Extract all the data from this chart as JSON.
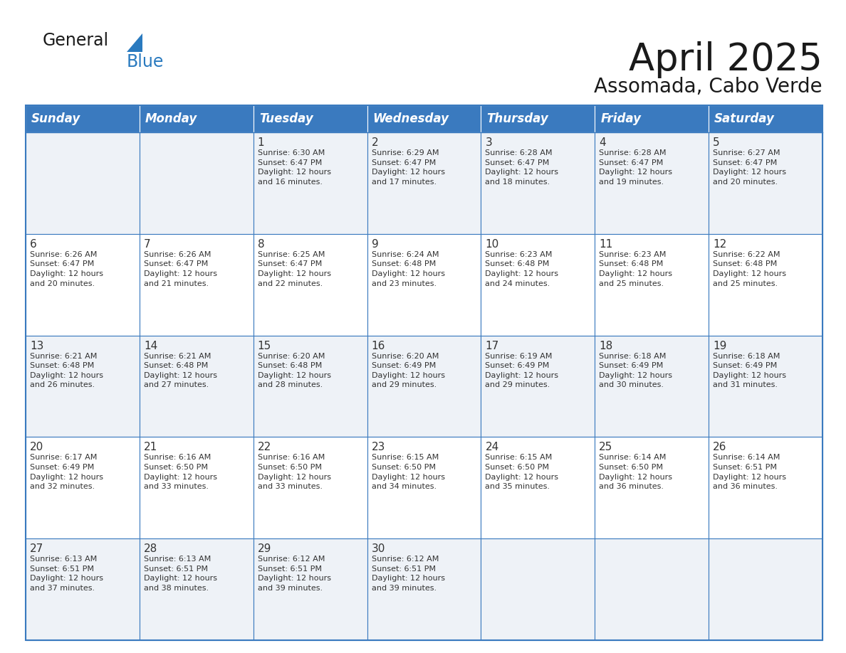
{
  "title": "April 2025",
  "subtitle": "Assomada, Cabo Verde",
  "header_color": "#3a7abf",
  "header_text_color": "#ffffff",
  "cell_bg_row0": "#eef2f7",
  "cell_bg_row1": "#ffffff",
  "cell_bg_row2": "#eef2f7",
  "cell_bg_row3": "#ffffff",
  "cell_bg_row4": "#eef2f7",
  "border_color": "#3a7abf",
  "text_color": "#333333",
  "days_of_week": [
    "Sunday",
    "Monday",
    "Tuesday",
    "Wednesday",
    "Thursday",
    "Friday",
    "Saturday"
  ],
  "calendar_data": [
    [
      {
        "day": "",
        "info": ""
      },
      {
        "day": "",
        "info": ""
      },
      {
        "day": "1",
        "info": "Sunrise: 6:30 AM\nSunset: 6:47 PM\nDaylight: 12 hours\nand 16 minutes."
      },
      {
        "day": "2",
        "info": "Sunrise: 6:29 AM\nSunset: 6:47 PM\nDaylight: 12 hours\nand 17 minutes."
      },
      {
        "day": "3",
        "info": "Sunrise: 6:28 AM\nSunset: 6:47 PM\nDaylight: 12 hours\nand 18 minutes."
      },
      {
        "day": "4",
        "info": "Sunrise: 6:28 AM\nSunset: 6:47 PM\nDaylight: 12 hours\nand 19 minutes."
      },
      {
        "day": "5",
        "info": "Sunrise: 6:27 AM\nSunset: 6:47 PM\nDaylight: 12 hours\nand 20 minutes."
      }
    ],
    [
      {
        "day": "6",
        "info": "Sunrise: 6:26 AM\nSunset: 6:47 PM\nDaylight: 12 hours\nand 20 minutes."
      },
      {
        "day": "7",
        "info": "Sunrise: 6:26 AM\nSunset: 6:47 PM\nDaylight: 12 hours\nand 21 minutes."
      },
      {
        "day": "8",
        "info": "Sunrise: 6:25 AM\nSunset: 6:47 PM\nDaylight: 12 hours\nand 22 minutes."
      },
      {
        "day": "9",
        "info": "Sunrise: 6:24 AM\nSunset: 6:48 PM\nDaylight: 12 hours\nand 23 minutes."
      },
      {
        "day": "10",
        "info": "Sunrise: 6:23 AM\nSunset: 6:48 PM\nDaylight: 12 hours\nand 24 minutes."
      },
      {
        "day": "11",
        "info": "Sunrise: 6:23 AM\nSunset: 6:48 PM\nDaylight: 12 hours\nand 25 minutes."
      },
      {
        "day": "12",
        "info": "Sunrise: 6:22 AM\nSunset: 6:48 PM\nDaylight: 12 hours\nand 25 minutes."
      }
    ],
    [
      {
        "day": "13",
        "info": "Sunrise: 6:21 AM\nSunset: 6:48 PM\nDaylight: 12 hours\nand 26 minutes."
      },
      {
        "day": "14",
        "info": "Sunrise: 6:21 AM\nSunset: 6:48 PM\nDaylight: 12 hours\nand 27 minutes."
      },
      {
        "day": "15",
        "info": "Sunrise: 6:20 AM\nSunset: 6:48 PM\nDaylight: 12 hours\nand 28 minutes."
      },
      {
        "day": "16",
        "info": "Sunrise: 6:20 AM\nSunset: 6:49 PM\nDaylight: 12 hours\nand 29 minutes."
      },
      {
        "day": "17",
        "info": "Sunrise: 6:19 AM\nSunset: 6:49 PM\nDaylight: 12 hours\nand 29 minutes."
      },
      {
        "day": "18",
        "info": "Sunrise: 6:18 AM\nSunset: 6:49 PM\nDaylight: 12 hours\nand 30 minutes."
      },
      {
        "day": "19",
        "info": "Sunrise: 6:18 AM\nSunset: 6:49 PM\nDaylight: 12 hours\nand 31 minutes."
      }
    ],
    [
      {
        "day": "20",
        "info": "Sunrise: 6:17 AM\nSunset: 6:49 PM\nDaylight: 12 hours\nand 32 minutes."
      },
      {
        "day": "21",
        "info": "Sunrise: 6:16 AM\nSunset: 6:50 PM\nDaylight: 12 hours\nand 33 minutes."
      },
      {
        "day": "22",
        "info": "Sunrise: 6:16 AM\nSunset: 6:50 PM\nDaylight: 12 hours\nand 33 minutes."
      },
      {
        "day": "23",
        "info": "Sunrise: 6:15 AM\nSunset: 6:50 PM\nDaylight: 12 hours\nand 34 minutes."
      },
      {
        "day": "24",
        "info": "Sunrise: 6:15 AM\nSunset: 6:50 PM\nDaylight: 12 hours\nand 35 minutes."
      },
      {
        "day": "25",
        "info": "Sunrise: 6:14 AM\nSunset: 6:50 PM\nDaylight: 12 hours\nand 36 minutes."
      },
      {
        "day": "26",
        "info": "Sunrise: 6:14 AM\nSunset: 6:51 PM\nDaylight: 12 hours\nand 36 minutes."
      }
    ],
    [
      {
        "day": "27",
        "info": "Sunrise: 6:13 AM\nSunset: 6:51 PM\nDaylight: 12 hours\nand 37 minutes."
      },
      {
        "day": "28",
        "info": "Sunrise: 6:13 AM\nSunset: 6:51 PM\nDaylight: 12 hours\nand 38 minutes."
      },
      {
        "day": "29",
        "info": "Sunrise: 6:12 AM\nSunset: 6:51 PM\nDaylight: 12 hours\nand 39 minutes."
      },
      {
        "day": "30",
        "info": "Sunrise: 6:12 AM\nSunset: 6:51 PM\nDaylight: 12 hours\nand 39 minutes."
      },
      {
        "day": "",
        "info": ""
      },
      {
        "day": "",
        "info": ""
      },
      {
        "day": "",
        "info": ""
      }
    ]
  ],
  "logo_color_general": "#1a1a1a",
  "logo_color_blue": "#2a7abf",
  "logo_triangle_color": "#2a7abf",
  "title_fontsize": 38,
  "subtitle_fontsize": 20,
  "header_fontsize": 12,
  "day_num_fontsize": 11,
  "info_fontsize": 8
}
